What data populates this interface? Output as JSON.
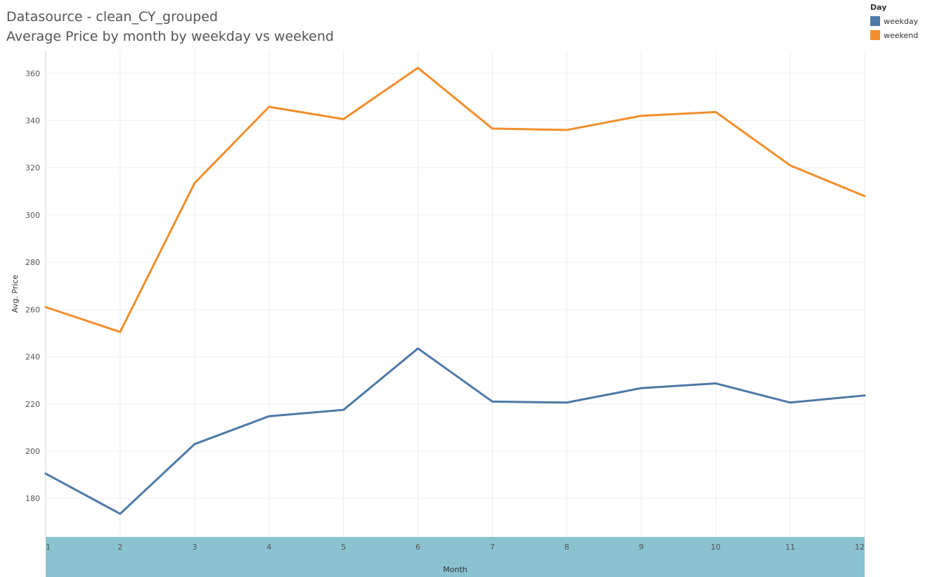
{
  "header": {
    "title": "Datasource - clean_CY_grouped",
    "subtitle": "Average Price by month by weekday vs weekend"
  },
  "legend": {
    "title": "Day",
    "items": [
      {
        "label": "weekday",
        "color": "#4e79a7"
      },
      {
        "label": "weekend",
        "color": "#f28e2b"
      }
    ]
  },
  "chart_data": {
    "type": "line",
    "title": "Average Price by month by weekday vs weekend",
    "xlabel": "Month",
    "ylabel": "Avg. Price",
    "x": [
      1,
      2,
      3,
      4,
      5,
      6,
      7,
      8,
      9,
      10,
      11,
      12
    ],
    "series": [
      {
        "name": "weekday",
        "color": "#4e79a7",
        "values": [
          190.5,
          173.5,
          203.0,
          214.8,
          217.5,
          243.5,
          221.0,
          220.6,
          226.7,
          228.7,
          220.6,
          223.6
        ]
      },
      {
        "name": "weekend",
        "color": "#f28e2b",
        "values": [
          261.0,
          250.5,
          313.5,
          345.8,
          340.6,
          362.3,
          336.6,
          336.0,
          342.0,
          343.6,
          321.0,
          308.0
        ]
      }
    ],
    "yticks": [
      180,
      200,
      220,
      240,
      260,
      280,
      300,
      320,
      340,
      360
    ],
    "ylim": [
      163.7,
      369.6
    ],
    "xlim": [
      1,
      12
    ],
    "grid": true,
    "x_axis_band_color": "#8ac2d0",
    "legend_position": "top-right"
  }
}
